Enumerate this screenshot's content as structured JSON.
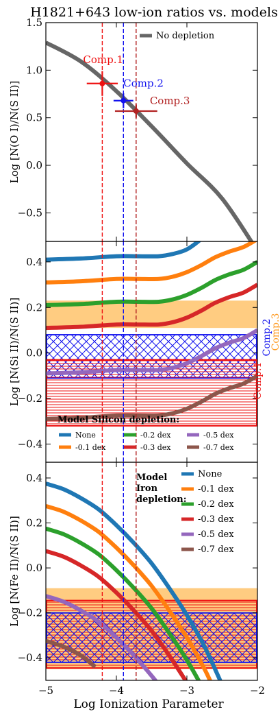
{
  "chart_data": {
    "type": "line",
    "title": "H1821+643 low-ion ratios vs. models",
    "xlabel": "Log Ionization Parameter",
    "xlim": [
      -5,
      -2
    ],
    "xticks": [
      "−5",
      "−4",
      "−3",
      "−2"
    ],
    "component_lines": [
      {
        "name": "Comp.1",
        "x": -4.2,
        "color": "#ee1111"
      },
      {
        "name": "Comp.2",
        "x": -3.9,
        "color": "#1111ee"
      },
      {
        "name": "Comp.3",
        "x": -3.72,
        "color": "#b22222"
      }
    ],
    "panels": [
      {
        "id": "oxygen",
        "ylabel": "Log [N(O I)/N(S II)]",
        "ylim": [
          -0.8,
          1.5
        ],
        "yticks": [
          {
            "value": 1.5,
            "label": "1.5"
          },
          {
            "value": 1.0,
            "label": "1.0"
          },
          {
            "value": 0.5,
            "label": "0.5"
          },
          {
            "value": 0.0,
            "label": "0.0"
          },
          {
            "value": -0.5,
            "label": "−0.5"
          }
        ],
        "series": [
          {
            "name": "No depletion",
            "color": "#666666",
            "x": [
              -5.0,
              -4.5,
              -4.0,
              -3.5,
              -3.0,
              -2.5,
              -2.0
            ],
            "y": [
              1.29,
              1.09,
              0.78,
              0.41,
              0.02,
              -0.35,
              -0.9
            ]
          }
        ],
        "legend": {
          "position": "top-right",
          "title": "",
          "entries": [
            "No depletion"
          ]
        },
        "measurements": [
          {
            "name": "Comp.1",
            "x": -4.2,
            "xerr": 0.22,
            "y": 0.86,
            "yerr": 0.13,
            "color": "#ee1111"
          },
          {
            "name": "Comp.2",
            "x": -3.9,
            "xerr": 0.14,
            "y": 0.68,
            "yerr": 0.08,
            "color": "#1111ee"
          },
          {
            "name": "Comp.3",
            "x": -3.72,
            "xerr": 0.3,
            "y": 0.57,
            "yerr": 0.07,
            "color": "#b22222"
          }
        ]
      },
      {
        "id": "silicon",
        "ylabel": "Log [N(Si II)/N(S II)]",
        "ylim": [
          -0.48,
          0.49
        ],
        "yticks": [
          {
            "value": 0.4,
            "label": "0.4"
          },
          {
            "value": 0.2,
            "label": "0.2"
          },
          {
            "value": 0.0,
            "label": "0.0"
          },
          {
            "value": -0.2,
            "label": "−0.2"
          },
          {
            "value": -0.4,
            "label": "−0.4"
          }
        ],
        "legend": {
          "position": "bottom",
          "title": "Model Silicon depletion:",
          "entries": [
            "None",
            "-0.1 dex",
            "-0.2 dex",
            "-0.3 dex",
            "-0.5 dex",
            "-0.7 dex"
          ]
        },
        "series": [
          {
            "name": "None",
            "color": "#1f77b4",
            "x": [
              -5.0,
              -4.5,
              -4.0,
              -3.7,
              -3.4,
              -3.2,
              -3.0,
              -2.8,
              -2.6
            ],
            "y": [
              0.41,
              0.415,
              0.425,
              0.425,
              0.425,
              0.435,
              0.455,
              0.5,
              0.56
            ]
          },
          {
            "name": "-0.1 dex",
            "color": "#ff7f0e",
            "x": [
              -5.0,
              -4.5,
              -4.0,
              -3.7,
              -3.4,
              -3.2,
              -3.0,
              -2.8,
              -2.6,
              -2.4,
              -2.2,
              -2.0
            ],
            "y": [
              0.31,
              0.315,
              0.325,
              0.325,
              0.325,
              0.335,
              0.355,
              0.385,
              0.42,
              0.445,
              0.465,
              0.5
            ]
          },
          {
            "name": "-0.2 dex",
            "color": "#2ca02c",
            "x": [
              -5.0,
              -4.5,
              -4.0,
              -3.7,
              -3.4,
              -3.2,
              -3.0,
              -2.8,
              -2.6,
              -2.4,
              -2.2,
              -2.0
            ],
            "y": [
              0.21,
              0.215,
              0.225,
              0.225,
              0.225,
              0.235,
              0.255,
              0.285,
              0.32,
              0.345,
              0.365,
              0.4
            ]
          },
          {
            "name": "-0.3 dex",
            "color": "#d62728",
            "x": [
              -5.0,
              -4.5,
              -4.0,
              -3.7,
              -3.4,
              -3.2,
              -3.0,
              -2.8,
              -2.6,
              -2.4,
              -2.2,
              -2.0
            ],
            "y": [
              0.11,
              0.115,
              0.125,
              0.125,
              0.125,
              0.135,
              0.155,
              0.185,
              0.22,
              0.245,
              0.265,
              0.3
            ]
          },
          {
            "name": "-0.5 dex",
            "color": "#9467bd",
            "x": [
              -5.0,
              -4.5,
              -4.0,
              -3.7,
              -3.4,
              -3.2,
              -3.0,
              -2.8,
              -2.6,
              -2.4,
              -2.2,
              -2.0
            ],
            "y": [
              -0.09,
              -0.085,
              -0.075,
              -0.075,
              -0.075,
              -0.065,
              -0.045,
              -0.015,
              0.02,
              0.045,
              0.065,
              0.1
            ]
          },
          {
            "name": "-0.7 dex",
            "color": "#8c564b",
            "x": [
              -5.0,
              -4.5,
              -4.0,
              -3.7,
              -3.4,
              -3.2,
              -3.0,
              -2.8,
              -2.6,
              -2.4,
              -2.2,
              -2.0
            ],
            "y": [
              -0.29,
              -0.285,
              -0.275,
              -0.275,
              -0.275,
              -0.265,
              -0.245,
              -0.215,
              -0.18,
              -0.155,
              -0.135,
              -0.1
            ]
          }
        ],
        "bands": [
          {
            "name": "Comp.3",
            "ymin": 0.11,
            "ymax": 0.23,
            "fill": "#ffc36b",
            "hatch": "none",
            "edge": "none"
          },
          {
            "name": "Comp.2",
            "ymin": -0.11,
            "ymax": 0.08,
            "fill": "none",
            "hatch": "cross",
            "edge": "#1111ee"
          },
          {
            "name": "Comp.1",
            "ymin": -0.32,
            "ymax": -0.03,
            "fill": "none",
            "hatch": "horizontal",
            "edge": "#ee1111"
          }
        ],
        "band_labels": [
          {
            "text": "Comp.1",
            "color": "#ee1111"
          },
          {
            "text": "Comp.2",
            "color": "#1111ee"
          },
          {
            "text": "Comp.3",
            "color": "#ff9a1f"
          }
        ]
      },
      {
        "id": "iron",
        "ylabel": "Log [N(Fe II)/N(S II)]",
        "ylim": [
          -0.5,
          0.47
        ],
        "yticks": [
          {
            "value": 0.4,
            "label": "0.4"
          },
          {
            "value": 0.2,
            "label": "0.2"
          },
          {
            "value": 0.0,
            "label": "0.0"
          },
          {
            "value": -0.2,
            "label": "−0.2"
          },
          {
            "value": -0.4,
            "label": "−0.4"
          }
        ],
        "legend": {
          "position": "upper-right",
          "title": "Model Iron depletion:",
          "title_lines": [
            "Model",
            "Iron",
            "depletion:"
          ],
          "entries": [
            "None",
            "-0.1 dex",
            "-0.2 dex",
            "-0.3 dex",
            "-0.5 dex",
            "-0.7 dex"
          ]
        },
        "series": [
          {
            "name": "None",
            "color": "#1f77b4",
            "x": [
              -5.0,
              -4.75,
              -4.5,
              -4.25,
              -4.0,
              -3.75,
              -3.5,
              -3.25,
              -3.0,
              -2.75,
              -2.5
            ],
            "y": [
              0.375,
              0.35,
              0.31,
              0.26,
              0.19,
              0.11,
              0.02,
              -0.09,
              -0.21,
              -0.35,
              -0.52
            ]
          },
          {
            "name": "-0.1 dex",
            "color": "#ff7f0e",
            "x": [
              -5.0,
              -4.75,
              -4.5,
              -4.25,
              -4.0,
              -3.75,
              -3.5,
              -3.25,
              -3.0,
              -2.75,
              -2.6
            ],
            "y": [
              0.275,
              0.25,
              0.21,
              0.16,
              0.09,
              0.01,
              -0.08,
              -0.19,
              -0.31,
              -0.45,
              -0.55
            ]
          },
          {
            "name": "-0.2 dex",
            "color": "#2ca02c",
            "x": [
              -5.0,
              -4.75,
              -4.5,
              -4.25,
              -4.0,
              -3.75,
              -3.5,
              -3.25,
              -3.0,
              -2.8
            ],
            "y": [
              0.175,
              0.15,
              0.11,
              0.06,
              -0.01,
              -0.09,
              -0.18,
              -0.29,
              -0.41,
              -0.52
            ]
          },
          {
            "name": "-0.3 dex",
            "color": "#d62728",
            "x": [
              -5.0,
              -4.75,
              -4.5,
              -4.25,
              -4.0,
              -3.75,
              -3.5,
              -3.25,
              -3.0,
              -2.9
            ],
            "y": [
              0.075,
              0.05,
              0.01,
              -0.04,
              -0.11,
              -0.19,
              -0.28,
              -0.39,
              -0.51,
              -0.56
            ]
          },
          {
            "name": "-0.5 dex",
            "color": "#9467bd",
            "x": [
              -5.0,
              -4.75,
              -4.5,
              -4.25,
              -4.0,
              -3.75,
              -3.5,
              -3.3
            ],
            "y": [
              -0.125,
              -0.15,
              -0.19,
              -0.24,
              -0.31,
              -0.39,
              -0.48,
              -0.56
            ]
          },
          {
            "name": "-0.7 dex",
            "color": "#8c564b",
            "x": [
              -5.0,
              -4.75,
              -4.5,
              -4.3
            ],
            "y": [
              -0.325,
              -0.35,
              -0.39,
              -0.44
            ]
          }
        ],
        "bands": [
          {
            "name": "Comp.3",
            "ymin": -0.45,
            "ymax": -0.09,
            "fill": "#ffc36b",
            "hatch": "none",
            "edge": "none"
          },
          {
            "name": "Comp.1",
            "ymin": -0.445,
            "ymax": -0.145,
            "fill": "none",
            "hatch": "horizontal",
            "edge": "#ee1111"
          },
          {
            "name": "Comp.2",
            "ymin": -0.42,
            "ymax": -0.2,
            "fill": "none",
            "hatch": "cross",
            "edge": "#1111ee"
          }
        ]
      }
    ]
  }
}
